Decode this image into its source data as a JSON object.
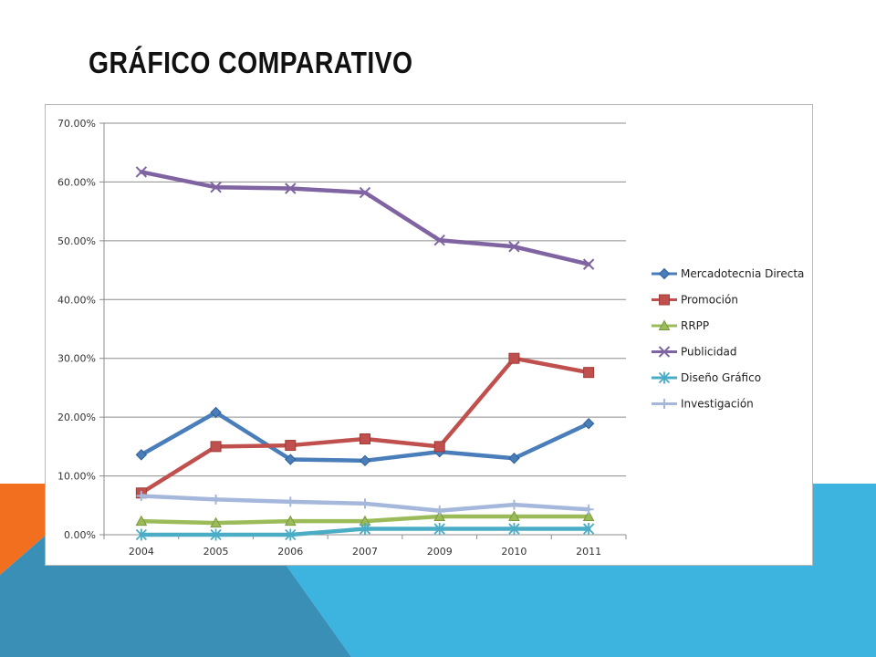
{
  "slide": {
    "title": "GRÁFICO COMPARATIVO",
    "colors": {
      "orange": "#f26f1f",
      "blue": "#3db3e0",
      "teal": "#3a8fb7"
    }
  },
  "chart_data": {
    "type": "line",
    "categories": [
      "2004",
      "2005",
      "2006",
      "2007",
      "2009",
      "2010",
      "2011"
    ],
    "ylim": [
      0,
      70
    ],
    "ytick_values": [
      0,
      10,
      20,
      30,
      40,
      50,
      60,
      70
    ],
    "ytick_labels": [
      "0.00%",
      "10.00%",
      "20.00%",
      "30.00%",
      "40.00%",
      "50.00%",
      "60.00%",
      "70.00%"
    ],
    "grid": true,
    "legend_position": "right",
    "series": [
      {
        "name": "Mercadotecnia Directa",
        "color": "#4a7ebb",
        "marker": "diamond",
        "values": [
          13.6,
          20.8,
          12.8,
          12.6,
          14.1,
          13.0,
          18.9
        ]
      },
      {
        "name": "Promoción",
        "color": "#c0504d",
        "marker": "square",
        "values": [
          7.1,
          15.0,
          15.2,
          16.3,
          15.0,
          30.0,
          27.6
        ]
      },
      {
        "name": "RRPP",
        "color": "#9bbb59",
        "marker": "triangle",
        "values": [
          2.3,
          2.0,
          2.3,
          2.3,
          3.1,
          3.1,
          3.1
        ]
      },
      {
        "name": "Publicidad",
        "color": "#8064a2",
        "marker": "x",
        "values": [
          61.7,
          59.1,
          58.9,
          58.2,
          50.1,
          49.0,
          46.0
        ]
      },
      {
        "name": "Diseño Gráfico",
        "color": "#4bacc6",
        "marker": "star",
        "values": [
          0.0,
          0.0,
          0.0,
          1.0,
          1.0,
          1.0,
          1.0
        ]
      },
      {
        "name": "Investigación",
        "color": "#a5b8dc",
        "marker": "plus",
        "values": [
          6.6,
          6.0,
          5.6,
          5.3,
          4.1,
          5.1,
          4.3
        ]
      }
    ]
  }
}
